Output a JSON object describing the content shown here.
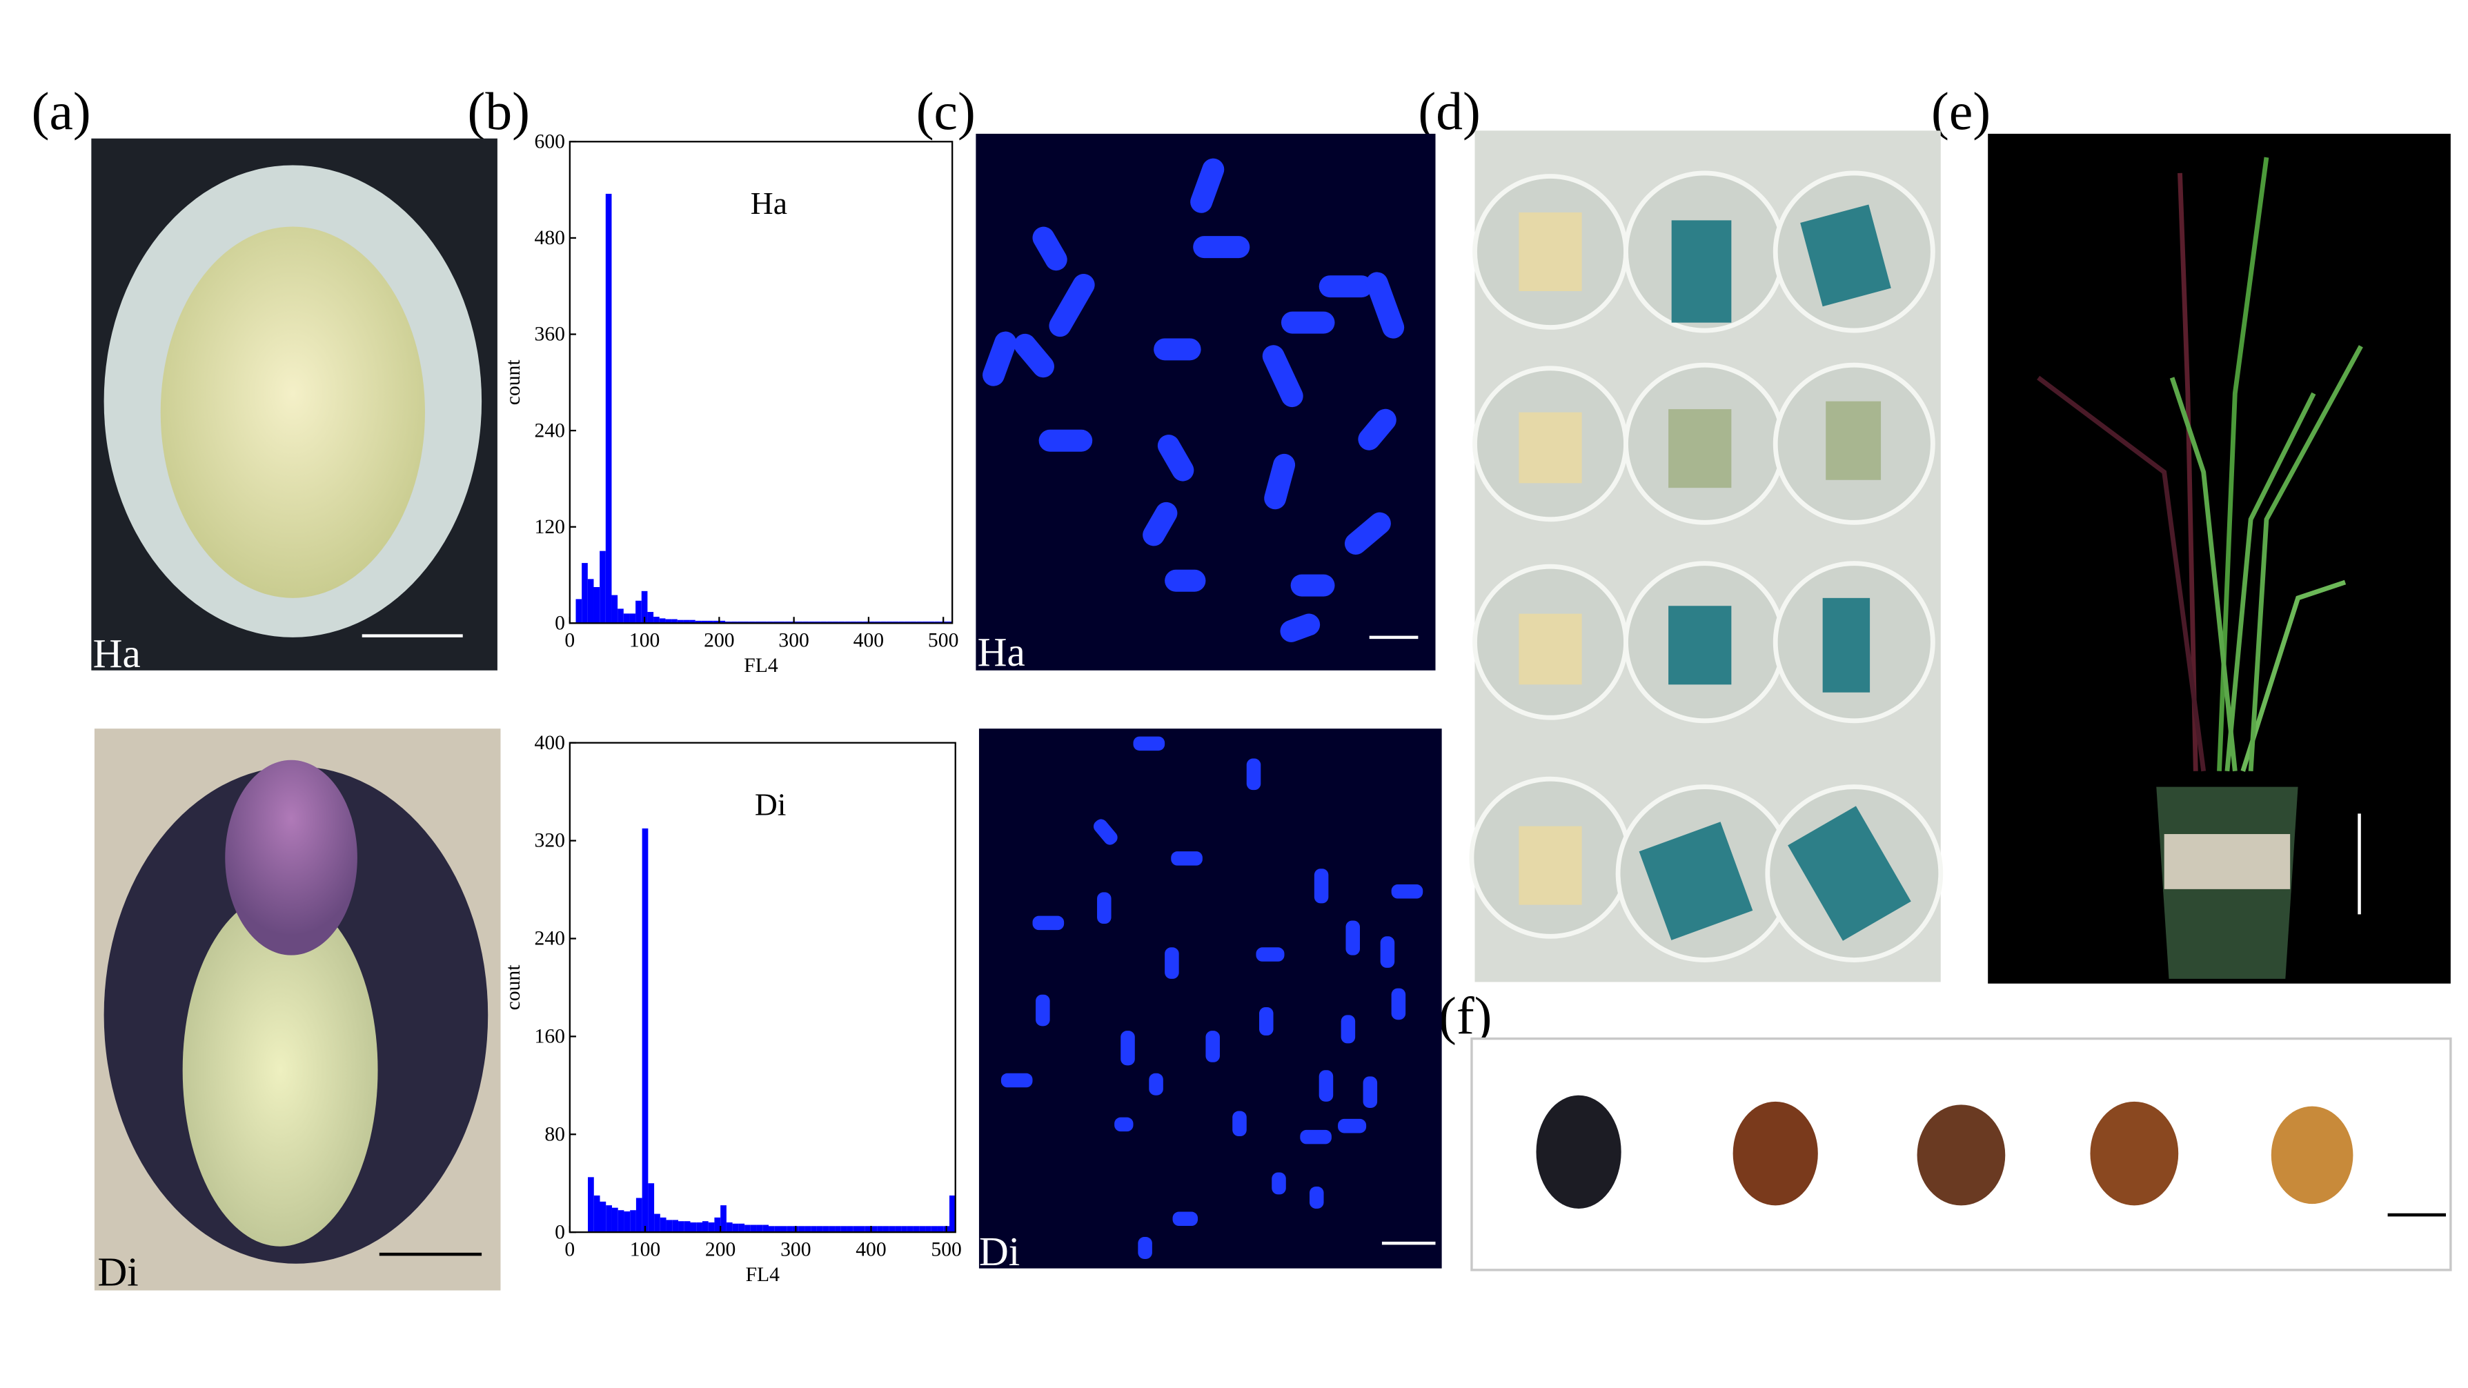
{
  "panel_labels": [
    "(a)",
    "(b)",
    "(c)",
    "(d)",
    "(e)",
    "(f)"
  ],
  "image_labels": [
    "Ha",
    "Di",
    "Ha",
    "Di"
  ],
  "chart_data": [
    {
      "type": "histogram",
      "title": "Ha",
      "xlabel": "FL4",
      "ylabel": "count",
      "color": "#0000ff",
      "bins": [
        0,
        8,
        16,
        24,
        32,
        40,
        48,
        56,
        64,
        72,
        80,
        88,
        96,
        104,
        112,
        120,
        128,
        136,
        144,
        152,
        160,
        168,
        176,
        184,
        192,
        200,
        208,
        216,
        224,
        232,
        240,
        248,
        256,
        264,
        272,
        280,
        288,
        296,
        304,
        312,
        320,
        328,
        336,
        344,
        352,
        360,
        368,
        376,
        384,
        392,
        400,
        408,
        416,
        424,
        432,
        440,
        448,
        456,
        464,
        472,
        480,
        488,
        496,
        504,
        512
      ],
      "counts": [
        0,
        30,
        75,
        55,
        45,
        90,
        535,
        35,
        18,
        12,
        12,
        28,
        40,
        14,
        8,
        6,
        5,
        5,
        4,
        4,
        4,
        3,
        3,
        3,
        3,
        3,
        2,
        2,
        2,
        2,
        2,
        2,
        2,
        2,
        2,
        2,
        2,
        2,
        2,
        2,
        2,
        2,
        2,
        2,
        2,
        2,
        2,
        2,
        2,
        2,
        2,
        2,
        2,
        2,
        2,
        2,
        2,
        2,
        2,
        2,
        2,
        2,
        2,
        2
      ],
      "xlim": [
        0,
        512
      ],
      "ylim": [
        0,
        600
      ],
      "xticks": [
        0,
        100,
        200,
        300,
        400,
        500
      ],
      "yticks": [
        0,
        120,
        240,
        360,
        480,
        600
      ]
    },
    {
      "type": "histogram",
      "title": "Di",
      "xlabel": "FL4",
      "ylabel": "count",
      "color": "#0000ff",
      "bins": [
        0,
        8,
        16,
        24,
        32,
        40,
        48,
        56,
        64,
        72,
        80,
        88,
        96,
        104,
        112,
        120,
        128,
        136,
        144,
        152,
        160,
        168,
        176,
        184,
        192,
        200,
        208,
        216,
        224,
        232,
        240,
        248,
        256,
        264,
        272,
        280,
        288,
        296,
        304,
        312,
        320,
        328,
        336,
        344,
        352,
        360,
        368,
        376,
        384,
        392,
        400,
        408,
        416,
        424,
        432,
        440,
        448,
        456,
        464,
        472,
        480,
        488,
        496,
        504,
        512
      ],
      "counts": [
        0,
        0,
        0,
        45,
        30,
        25,
        22,
        20,
        18,
        17,
        18,
        28,
        330,
        40,
        15,
        12,
        10,
        10,
        9,
        9,
        8,
        8,
        9,
        8,
        12,
        22,
        8,
        7,
        7,
        6,
        6,
        6,
        6,
        5,
        5,
        5,
        5,
        5,
        5,
        5,
        5,
        5,
        5,
        5,
        5,
        5,
        5,
        5,
        5,
        5,
        5,
        5,
        5,
        5,
        5,
        5,
        5,
        5,
        5,
        5,
        5,
        5,
        5,
        30
      ],
      "xlim": [
        0,
        512
      ],
      "ylim": [
        0,
        400
      ],
      "xticks": [
        0,
        100,
        200,
        300,
        400,
        500
      ],
      "yticks": [
        0,
        80,
        160,
        240,
        320,
        400
      ]
    }
  ]
}
